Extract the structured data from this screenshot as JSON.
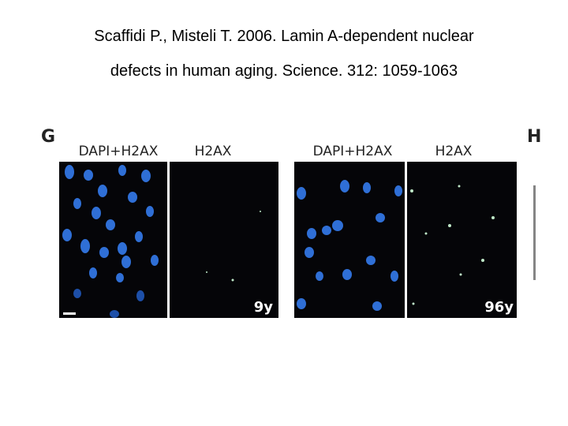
{
  "citation": {
    "lines": [
      "Scaffidi P., Misteli T. 2006. Lamin A-dependent nuclear",
      "defects in human aging. Science. 312: 1059-1063"
    ]
  },
  "figure": {
    "panel_labels": [
      "G",
      "H"
    ],
    "panels": [
      {
        "left_label": "DAPI+H2AX",
        "right_label": "H2AX",
        "age": "9y"
      },
      {
        "left_label": "DAPI+H2AX",
        "right_label": "H2AX",
        "age": "96y"
      }
    ]
  }
}
